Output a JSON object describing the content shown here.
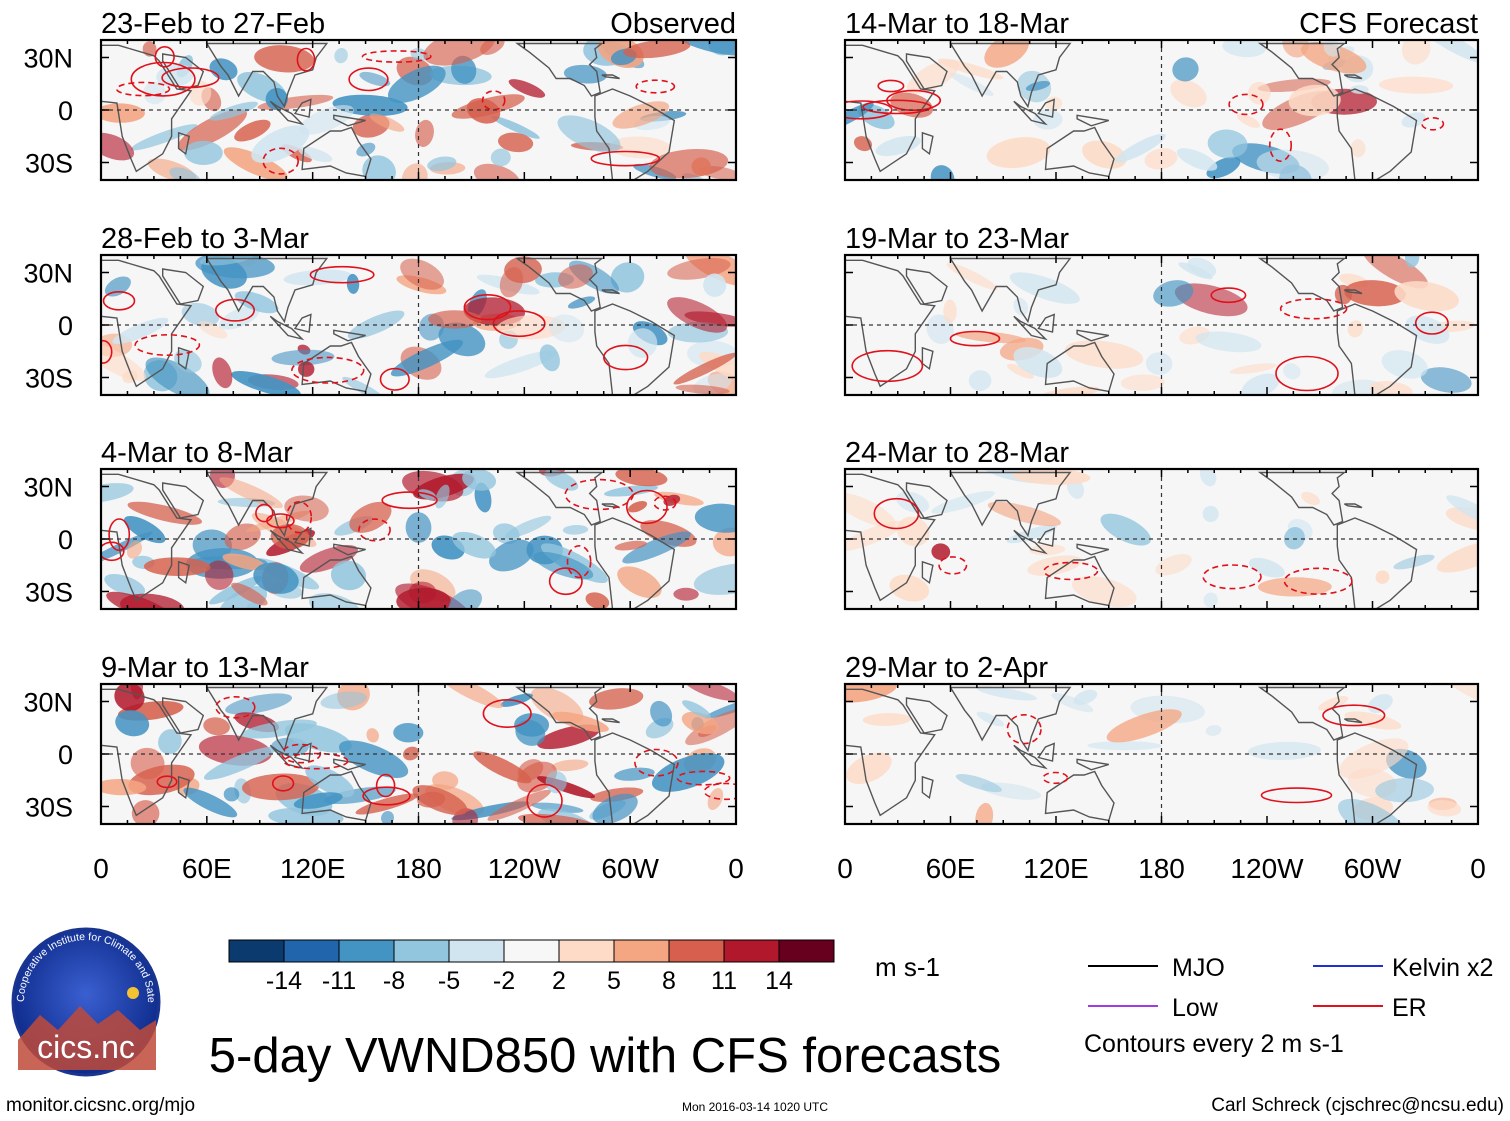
{
  "chart_data": {
    "type": "heatmap",
    "title": "5-day VWND850 with CFS forecasts",
    "units": "m s-1",
    "x_ticks": [
      "0",
      "60E",
      "120E",
      "180",
      "120W",
      "60W",
      "0"
    ],
    "y_ticks": [
      "30N",
      "0",
      "30S"
    ],
    "xlim": [
      0,
      360
    ],
    "ylim": [
      -40,
      40
    ],
    "observed_label": "Observed",
    "forecast_label": "CFS Forecast",
    "panels_observed": [
      {
        "period": "23-Feb to 27-Feb"
      },
      {
        "period": "28-Feb to 3-Mar"
      },
      {
        "period": "4-Mar to 8-Mar"
      },
      {
        "period": "9-Mar to 13-Mar"
      }
    ],
    "panels_forecast": [
      {
        "period": "14-Mar to 18-Mar"
      },
      {
        "period": "19-Mar to 23-Mar"
      },
      {
        "period": "24-Mar to 28-Mar"
      },
      {
        "period": "29-Mar to 2-Apr"
      }
    ],
    "colorbar": {
      "labels": [
        "-14",
        "-11",
        "-8",
        "-5",
        "-2",
        "2",
        "5",
        "8",
        "11",
        "14"
      ],
      "colors": [
        "#0a3a6e",
        "#2166ac",
        "#4393c3",
        "#92c5de",
        "#d1e5f0",
        "#f7f7f7",
        "#fddbc7",
        "#f4a582",
        "#d6604d",
        "#b2182b",
        "#67001f"
      ]
    },
    "legend": [
      {
        "name": "MJO",
        "color": "#000000"
      },
      {
        "name": "Kelvin x2",
        "color": "#1f2fd6"
      },
      {
        "name": "Low",
        "color": "#a03ce0"
      },
      {
        "name": "ER",
        "color": "#e0111b"
      }
    ],
    "contour_note": "Contours every 2 m s-1"
  },
  "logo": {
    "text": "cics.nc",
    "ring_text": "Cooperative Institute for Climate and Satellites"
  },
  "footer": {
    "url": "monitor.cicsnc.org/mjo",
    "timestamp": "Mon 2016-03-14 1020 UTC",
    "author": "Carl Schreck (cjschrec@ncsu.edu)"
  }
}
